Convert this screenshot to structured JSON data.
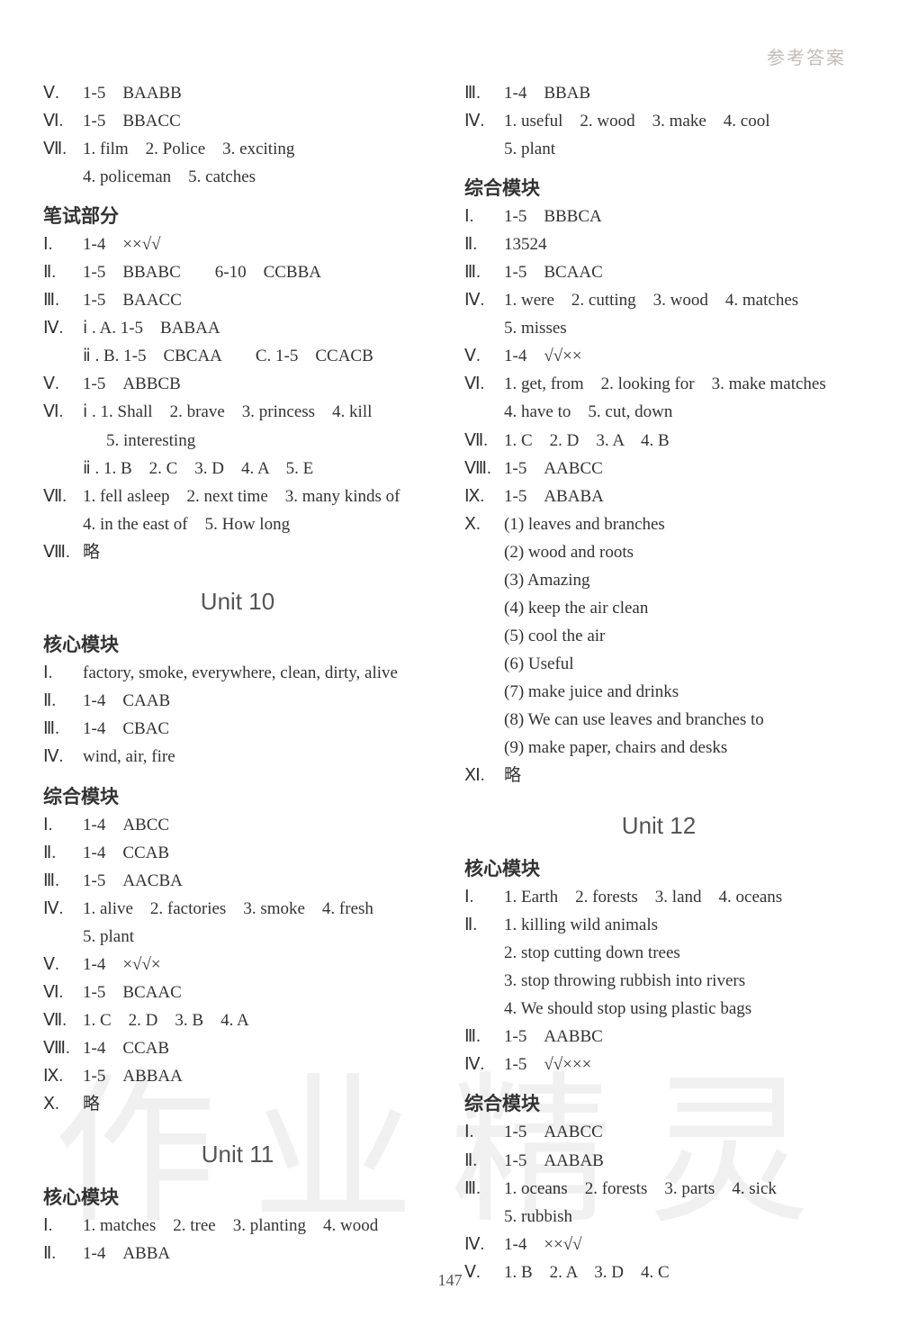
{
  "header_label": "参考答案",
  "page_number": "147",
  "watermark_text": "作业精灵",
  "left": {
    "top": [
      {
        "rn": "Ⅴ.",
        "txt": "1-5　BAABB"
      },
      {
        "rn": "Ⅵ.",
        "txt": "1-5　BBACC"
      },
      {
        "rn": "Ⅶ.",
        "txt": "1. film　2. Police　3. exciting"
      },
      {
        "rn": "",
        "txt": "4. policeman　5. catches",
        "cls": "indent1"
      }
    ],
    "section1_title": "笔试部分",
    "section1": [
      {
        "rn": "Ⅰ.",
        "txt": "1-4　××√√"
      },
      {
        "rn": "Ⅱ.",
        "txt": "1-5　BBABC　　6-10　CCBBA"
      },
      {
        "rn": "Ⅲ.",
        "txt": "1-5　BAACC"
      },
      {
        "rn": "Ⅳ.",
        "txt": "ⅰ . A. 1-5　BABAA"
      },
      {
        "rn": "",
        "txt": "ⅱ . B. 1-5　CBCAA　　C. 1-5　CCACB",
        "cls": "indent1"
      },
      {
        "rn": "Ⅴ.",
        "txt": "1-5　ABBCB"
      },
      {
        "rn": "Ⅵ.",
        "txt": "ⅰ . 1. Shall　2. brave　3. princess　4. kill"
      },
      {
        "rn": "",
        "txt": "5. interesting",
        "cls": "indent2"
      },
      {
        "rn": "",
        "txt": "ⅱ . 1. B　2. C　3. D　4. A　5. E",
        "cls": "indent1"
      },
      {
        "rn": "Ⅶ.",
        "txt": "1. fell asleep　2. next time　3. many kinds of"
      },
      {
        "rn": "",
        "txt": "4. in the east of　5. How long",
        "cls": "indent1"
      },
      {
        "rn": "Ⅷ.",
        "txt": "略"
      }
    ],
    "unit10_title": "Unit 10",
    "unit10_core_title": "核心模块",
    "unit10_core": [
      {
        "rn": "Ⅰ.",
        "txt": "factory, smoke, everywhere, clean, dirty, alive"
      },
      {
        "rn": "Ⅱ.",
        "txt": "1-4　CAAB"
      },
      {
        "rn": "Ⅲ.",
        "txt": "1-4　CBAC"
      },
      {
        "rn": "Ⅳ.",
        "txt": "wind, air, fire"
      }
    ],
    "unit10_comp_title": "综合模块",
    "unit10_comp": [
      {
        "rn": "Ⅰ.",
        "txt": "1-4　ABCC"
      },
      {
        "rn": "Ⅱ.",
        "txt": "1-4　CCAB"
      },
      {
        "rn": "Ⅲ.",
        "txt": "1-5　AACBA"
      },
      {
        "rn": "Ⅳ.",
        "txt": "1. alive　2. factories　3. smoke　4. fresh"
      },
      {
        "rn": "",
        "txt": "5. plant",
        "cls": "indent1"
      },
      {
        "rn": "Ⅴ.",
        "txt": "1-4　×√√×"
      },
      {
        "rn": "Ⅵ.",
        "txt": "1-5　BCAAC"
      },
      {
        "rn": "Ⅶ.",
        "txt": "1. C　2. D　3. B　4. A"
      },
      {
        "rn": "Ⅷ.",
        "txt": "1-4　CCAB"
      },
      {
        "rn": "Ⅸ.",
        "txt": "1-5　ABBAA"
      },
      {
        "rn": "Ⅹ.",
        "txt": "略"
      }
    ],
    "unit11_title": "Unit 11",
    "unit11_core_title": "核心模块",
    "unit11_core": [
      {
        "rn": "Ⅰ.",
        "txt": "1. matches　2. tree　3. planting　4. wood"
      },
      {
        "rn": "Ⅱ.",
        "txt": "1-4　ABBA"
      }
    ]
  },
  "right": {
    "top": [
      {
        "rn": "Ⅲ.",
        "txt": "1-4　BBAB"
      },
      {
        "rn": "Ⅳ.",
        "txt": "1. useful　2. wood　3. make　4. cool"
      },
      {
        "rn": "",
        "txt": "5. plant",
        "cls": "indent1"
      }
    ],
    "comp_title": "综合模块",
    "comp": [
      {
        "rn": "Ⅰ.",
        "txt": "1-5　BBBCA"
      },
      {
        "rn": "Ⅱ.",
        "txt": "13524"
      },
      {
        "rn": "Ⅲ.",
        "txt": "1-5　BCAAC"
      },
      {
        "rn": "Ⅳ.",
        "txt": "1. were　2. cutting　3. wood　4. matches"
      },
      {
        "rn": "",
        "txt": "5. misses",
        "cls": "indent1"
      },
      {
        "rn": "Ⅴ.",
        "txt": "1-4　√√××"
      },
      {
        "rn": "Ⅵ.",
        "txt": "1. get, from　2. looking for　3. make matches"
      },
      {
        "rn": "",
        "txt": "4. have to　5. cut, down",
        "cls": "indent1"
      },
      {
        "rn": "Ⅶ.",
        "txt": "1. C　2. D　3. A　4. B"
      },
      {
        "rn": "Ⅷ.",
        "txt": "1-5　AABCC"
      },
      {
        "rn": "Ⅸ.",
        "txt": "1-5　ABABA"
      },
      {
        "rn": "Ⅹ.",
        "txt": "(1) leaves and branches"
      },
      {
        "rn": "",
        "txt": "(2) wood and roots",
        "cls": "indent1"
      },
      {
        "rn": "",
        "txt": "(3) Amazing",
        "cls": "indent1"
      },
      {
        "rn": "",
        "txt": "(4) keep the air clean",
        "cls": "indent1"
      },
      {
        "rn": "",
        "txt": "(5) cool the air",
        "cls": "indent1"
      },
      {
        "rn": "",
        "txt": "(6) Useful",
        "cls": "indent1"
      },
      {
        "rn": "",
        "txt": "(7) make juice and drinks",
        "cls": "indent1"
      },
      {
        "rn": "",
        "txt": "(8) We can use leaves and branches to",
        "cls": "indent1"
      },
      {
        "rn": "",
        "txt": "(9) make paper, chairs and desks",
        "cls": "indent1"
      },
      {
        "rn": "Ⅺ.",
        "txt": "略"
      }
    ],
    "unit12_title": "Unit 12",
    "unit12_core_title": "核心模块",
    "unit12_core": [
      {
        "rn": "Ⅰ.",
        "txt": "1. Earth　2. forests　3. land　4. oceans"
      },
      {
        "rn": "Ⅱ.",
        "txt": "1. killing wild animals"
      },
      {
        "rn": "",
        "txt": "2. stop cutting down trees",
        "cls": "indent1"
      },
      {
        "rn": "",
        "txt": "3. stop throwing rubbish into rivers",
        "cls": "indent1"
      },
      {
        "rn": "",
        "txt": "4. We should stop using plastic bags",
        "cls": "indent1"
      },
      {
        "rn": "Ⅲ.",
        "txt": "1-5　AABBC"
      },
      {
        "rn": "Ⅳ.",
        "txt": "1-5　√√×××"
      }
    ],
    "unit12_comp_title": "综合模块",
    "unit12_comp": [
      {
        "rn": "Ⅰ.",
        "txt": "1-5　AABCC"
      },
      {
        "rn": "Ⅱ.",
        "txt": "1-5　AABAB"
      },
      {
        "rn": "Ⅲ.",
        "txt": "1. oceans　2. forests　3. parts　4. sick"
      },
      {
        "rn": "",
        "txt": "5. rubbish",
        "cls": "indent1"
      },
      {
        "rn": "Ⅳ.",
        "txt": "1-4　××√√"
      },
      {
        "rn": "Ⅴ.",
        "txt": "1. B　2. A　3. D　4. C"
      }
    ]
  }
}
